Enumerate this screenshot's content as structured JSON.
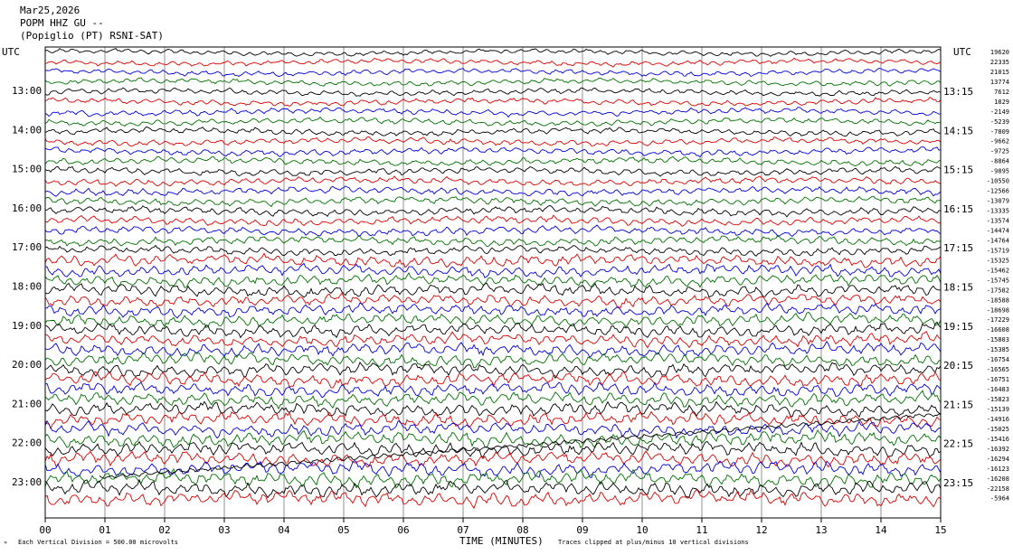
{
  "header": {
    "date": "Mar25,2026",
    "station": "POPM HHZ GU --",
    "network": "(Popiglio (PT) RSNI-SAT)"
  },
  "chart_data": {
    "type": "line",
    "title": "Mar25,2026",
    "xlabel": "TIME (MINUTES)",
    "x_ticks": [
      "00",
      "01",
      "02",
      "03",
      "04",
      "05",
      "06",
      "07",
      "08",
      "09",
      "10",
      "11",
      "12",
      "13",
      "14",
      "15"
    ],
    "xlim": [
      0,
      15
    ],
    "left_axis_label": "UTC",
    "right_axis_label": "UTC",
    "left_time_labels": [
      "13:00",
      "14:00",
      "15:00",
      "16:00",
      "17:00",
      "18:00",
      "19:00",
      "20:00",
      "21:00",
      "22:00",
      "23:00"
    ],
    "right_time_labels": [
      "13:15",
      "14:15",
      "15:15",
      "16:15",
      "17:15",
      "18:15",
      "19:15",
      "20:15",
      "21:15",
      "22:15",
      "23:15"
    ],
    "trace_colors": [
      "#000000",
      "#e00000",
      "#0000e0",
      "#007000"
    ],
    "trace_offsets": [
      "19620",
      "22335",
      "21015",
      "13774",
      "7612",
      "1829",
      "-2149",
      "-5239",
      "-7809",
      "-9662",
      "-9725",
      "-8864",
      "-9895",
      "-10550",
      "-12566",
      "-13079",
      "-13335",
      "-13574",
      "-14474",
      "-14764",
      "-15719",
      "-15325",
      "-15462",
      "-15745",
      "-17582",
      "-18588",
      "-18698",
      "-17229",
      "-16608",
      "-15803",
      "-15385",
      "-16754",
      "-16565",
      "-16751",
      "-16483",
      "-15823",
      "-15139",
      "-14916",
      "-15025",
      "-15416",
      "-16392",
      "-16294",
      "-16123",
      "-16208",
      "-22158",
      "-5964"
    ],
    "footer_left": "Each Vertical Division =  500.00 microvolts",
    "footer_right": "Traces clipped at plus/minus 10 vertical divisions",
    "footer_mark": "ᴹ"
  }
}
